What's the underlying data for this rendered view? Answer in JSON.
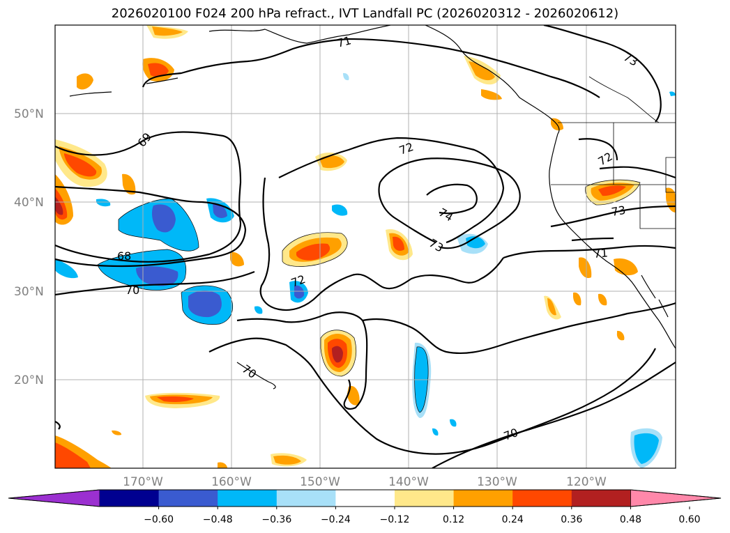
{
  "title": "2026020100 F024 200 hPa refract., IVT Landfall PC (2026020312 - 2026020612)",
  "map": {
    "lat_labels": [
      "50°N",
      "40°N",
      "30°N",
      "20°N"
    ],
    "lon_labels": [
      "170°W",
      "160°W",
      "150°W",
      "140°W",
      "130°W",
      "120°W"
    ],
    "contour_labels": [
      "71",
      "73",
      "69",
      "72",
      "72",
      "74",
      "73",
      "73",
      "68",
      "70",
      "72",
      "71",
      "70",
      "70"
    ]
  },
  "colorbar": {
    "colors": [
      "#9b30d0",
      "#000090",
      "#3a5bd0",
      "#00b8f8",
      "#a8e0f8",
      "#ffffff",
      "#ffe88a",
      "#ffa000",
      "#ff4800",
      "#b22020",
      "#ff88aa"
    ],
    "ticks": [
      "−0.60",
      "−0.48",
      "−0.36",
      "−0.24",
      "−0.12",
      "0.12",
      "0.24",
      "0.36",
      "0.48",
      "0.60"
    ]
  }
}
